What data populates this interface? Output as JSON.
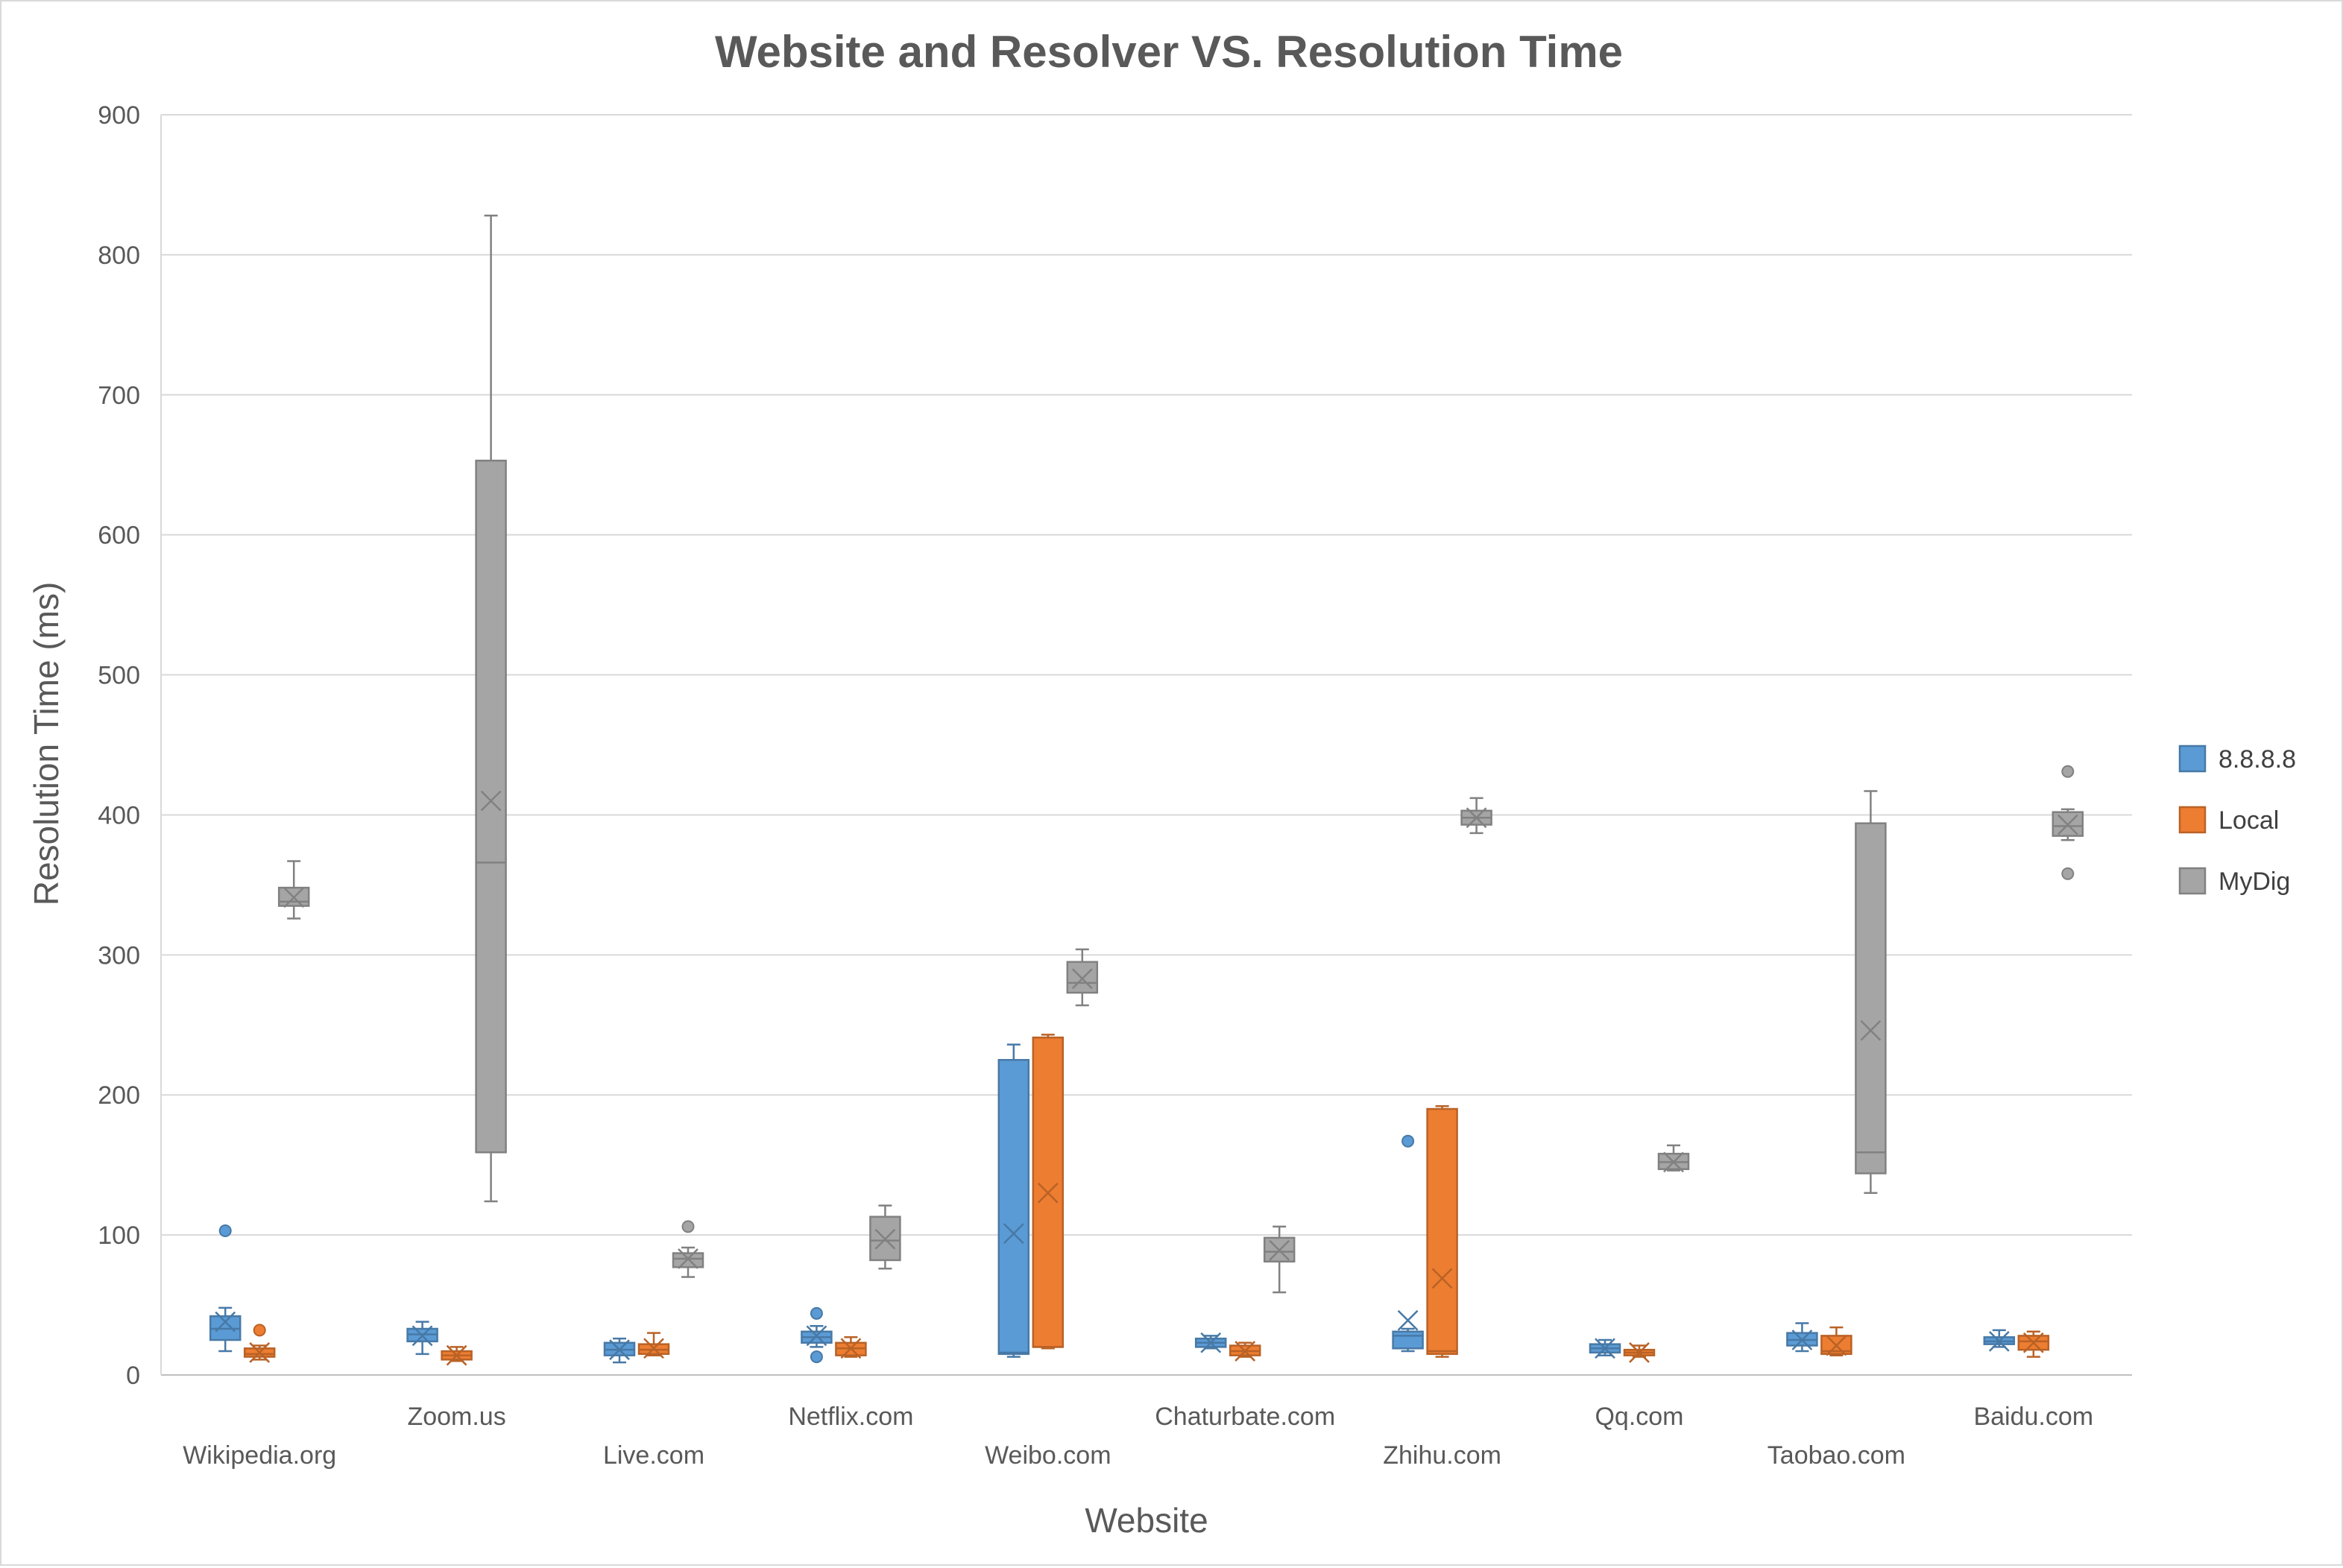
{
  "chart_data": {
    "type": "box",
    "title": "Website and Resolver VS. Resolution Time",
    "xlabel": "Website",
    "ylabel": "Resolution Time (ms)",
    "ylim": [
      0,
      900
    ],
    "yticks": [
      0,
      100,
      200,
      300,
      400,
      500,
      600,
      700,
      800,
      900
    ],
    "grid": "horizontal",
    "legend_position": "right",
    "categories": [
      "Wikipedia.org",
      "Zoom.us",
      "Live.com",
      "Netflix.com",
      "Weibo.com",
      "Chaturbate.com",
      "Zhihu.com",
      "Qq.com",
      "Taobao.com",
      "Baidu.com"
    ],
    "colors": {
      "8.8.8.8": "#5b9bd5",
      "Local": "#ed7d31",
      "MyDig": "#a5a5a5"
    },
    "series": [
      {
        "name": "8.8.8.8",
        "boxes": [
          {
            "min": 17,
            "q1": 25,
            "median": 33,
            "q3": 42,
            "max": 48,
            "mean": 38,
            "outliers": [
              103
            ]
          },
          {
            "min": 15,
            "q1": 24,
            "median": 29,
            "q3": 33,
            "max": 38,
            "mean": 28,
            "outliers": []
          },
          {
            "min": 9,
            "q1": 14,
            "median": 18,
            "q3": 23,
            "max": 26,
            "mean": 18,
            "outliers": []
          },
          {
            "min": 20,
            "q1": 23,
            "median": 27,
            "q3": 31,
            "max": 35,
            "mean": 28,
            "outliers": [
              44,
              13
            ]
          },
          {
            "min": 13,
            "q1": 15,
            "median": 16,
            "q3": 225,
            "max": 236,
            "mean": 101,
            "outliers": []
          },
          {
            "min": 19,
            "q1": 20,
            "median": 23,
            "q3": 26,
            "max": 28,
            "mean": 23,
            "outliers": []
          },
          {
            "min": 17,
            "q1": 19,
            "median": 28,
            "q3": 31,
            "max": 33,
            "mean": 39,
            "outliers": [
              167
            ]
          },
          {
            "min": 14,
            "q1": 16,
            "median": 19,
            "q3": 22,
            "max": 25,
            "mean": 19,
            "outliers": []
          },
          {
            "min": 17,
            "q1": 21,
            "median": 25,
            "q3": 30,
            "max": 37,
            "mean": 25,
            "outliers": []
          },
          {
            "min": 20,
            "q1": 22,
            "median": 24,
            "q3": 27,
            "max": 32,
            "mean": 24,
            "outliers": []
          }
        ]
      },
      {
        "name": "Local",
        "boxes": [
          {
            "min": 11,
            "q1": 13,
            "median": 15,
            "q3": 19,
            "max": 21,
            "mean": 16,
            "outliers": [
              32
            ]
          },
          {
            "min": 10,
            "q1": 11,
            "median": 14,
            "q3": 17,
            "max": 20,
            "mean": 14,
            "outliers": []
          },
          {
            "min": 14,
            "q1": 15,
            "median": 18,
            "q3": 22,
            "max": 30,
            "mean": 19,
            "outliers": []
          },
          {
            "min": 13,
            "q1": 14,
            "median": 19,
            "q3": 23,
            "max": 27,
            "mean": 19,
            "outliers": []
          },
          {
            "min": 19,
            "q1": 20,
            "median": 20,
            "q3": 241,
            "max": 243,
            "mean": 130,
            "outliers": []
          },
          {
            "min": 13,
            "q1": 14,
            "median": 17,
            "q3": 21,
            "max": 23,
            "mean": 17,
            "outliers": []
          },
          {
            "min": 13,
            "q1": 15,
            "median": 17,
            "q3": 190,
            "max": 192,
            "mean": 69,
            "outliers": []
          },
          {
            "min": 13,
            "q1": 14,
            "median": 16,
            "q3": 18,
            "max": 21,
            "mean": 16,
            "outliers": []
          },
          {
            "min": 14,
            "q1": 15,
            "median": 17,
            "q3": 28,
            "max": 34,
            "mean": 21,
            "outliers": []
          },
          {
            "min": 13,
            "q1": 18,
            "median": 24,
            "q3": 28,
            "max": 31,
            "mean": 23,
            "outliers": []
          }
        ]
      },
      {
        "name": "MyDig",
        "boxes": [
          {
            "min": 326,
            "q1": 335,
            "median": 338,
            "q3": 348,
            "max": 367,
            "mean": 341,
            "outliers": []
          },
          {
            "min": 124,
            "q1": 159,
            "median": 366,
            "q3": 653,
            "max": 828,
            "mean": 410,
            "outliers": []
          },
          {
            "min": 70,
            "q1": 77,
            "median": 83,
            "q3": 87,
            "max": 91,
            "mean": 83,
            "outliers": [
              106
            ]
          },
          {
            "min": 76,
            "q1": 82,
            "median": 96,
            "q3": 113,
            "max": 121,
            "mean": 97,
            "outliers": []
          },
          {
            "min": 264,
            "q1": 273,
            "median": 280,
            "q3": 295,
            "max": 304,
            "mean": 283,
            "outliers": []
          },
          {
            "min": 59,
            "q1": 81,
            "median": 88,
            "q3": 98,
            "max": 106,
            "mean": 89,
            "outliers": []
          },
          {
            "min": 387,
            "q1": 393,
            "median": 398,
            "q3": 403,
            "max": 412,
            "mean": 398,
            "outliers": []
          },
          {
            "min": 146,
            "q1": 147,
            "median": 152,
            "q3": 158,
            "max": 164,
            "mean": 152,
            "outliers": []
          },
          {
            "min": 130,
            "q1": 144,
            "median": 159,
            "q3": 394,
            "max": 417,
            "mean": 246,
            "outliers": []
          },
          {
            "min": 382,
            "q1": 385,
            "median": 392,
            "q3": 402,
            "max": 404,
            "mean": 393,
            "outliers": [
              431,
              358
            ]
          }
        ]
      }
    ]
  }
}
